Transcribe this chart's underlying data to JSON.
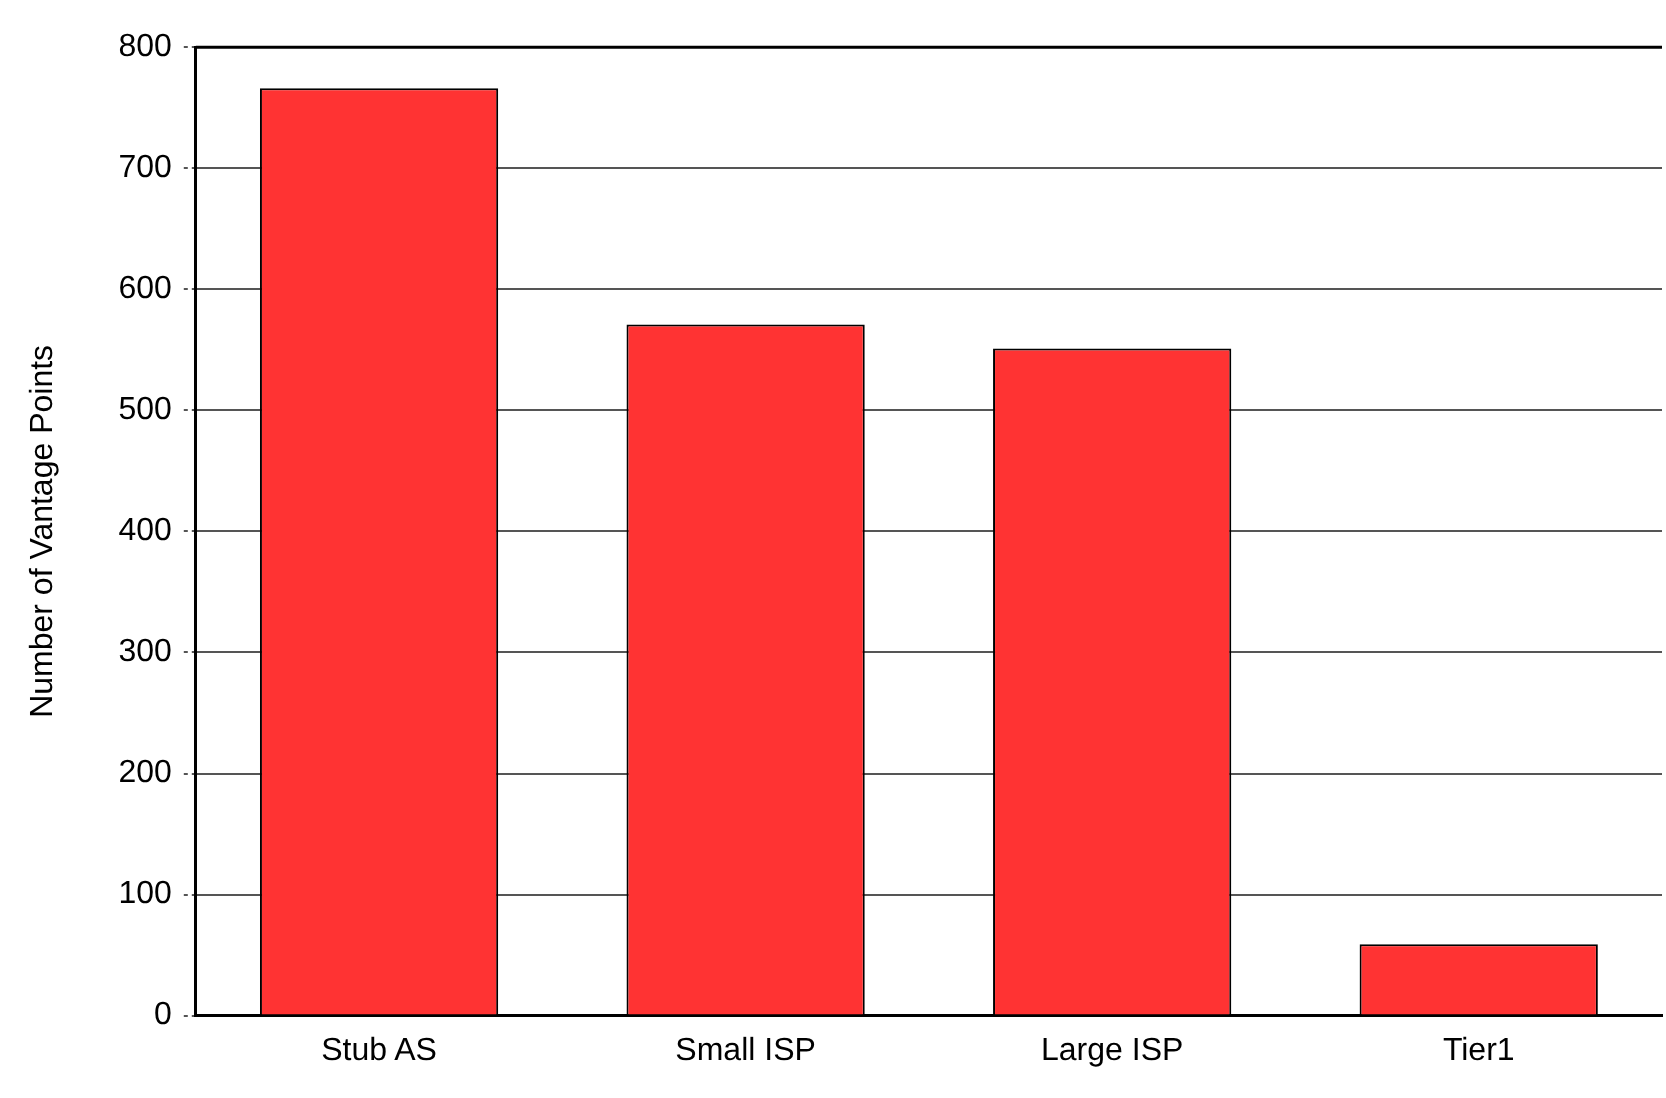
{
  "chart_data": {
    "type": "bar",
    "ylabel": "Number of Vantage Points",
    "categories": [
      "Stub AS",
      "Small ISP",
      "Large ISP",
      "Tier1"
    ],
    "values": [
      766,
      571,
      551,
      59
    ],
    "color": "#ff3333",
    "ylim": [
      0,
      800
    ],
    "yticks": [
      0,
      100,
      200,
      300,
      400,
      500,
      600,
      700,
      800
    ],
    "grid": "y",
    "legend": false
  }
}
